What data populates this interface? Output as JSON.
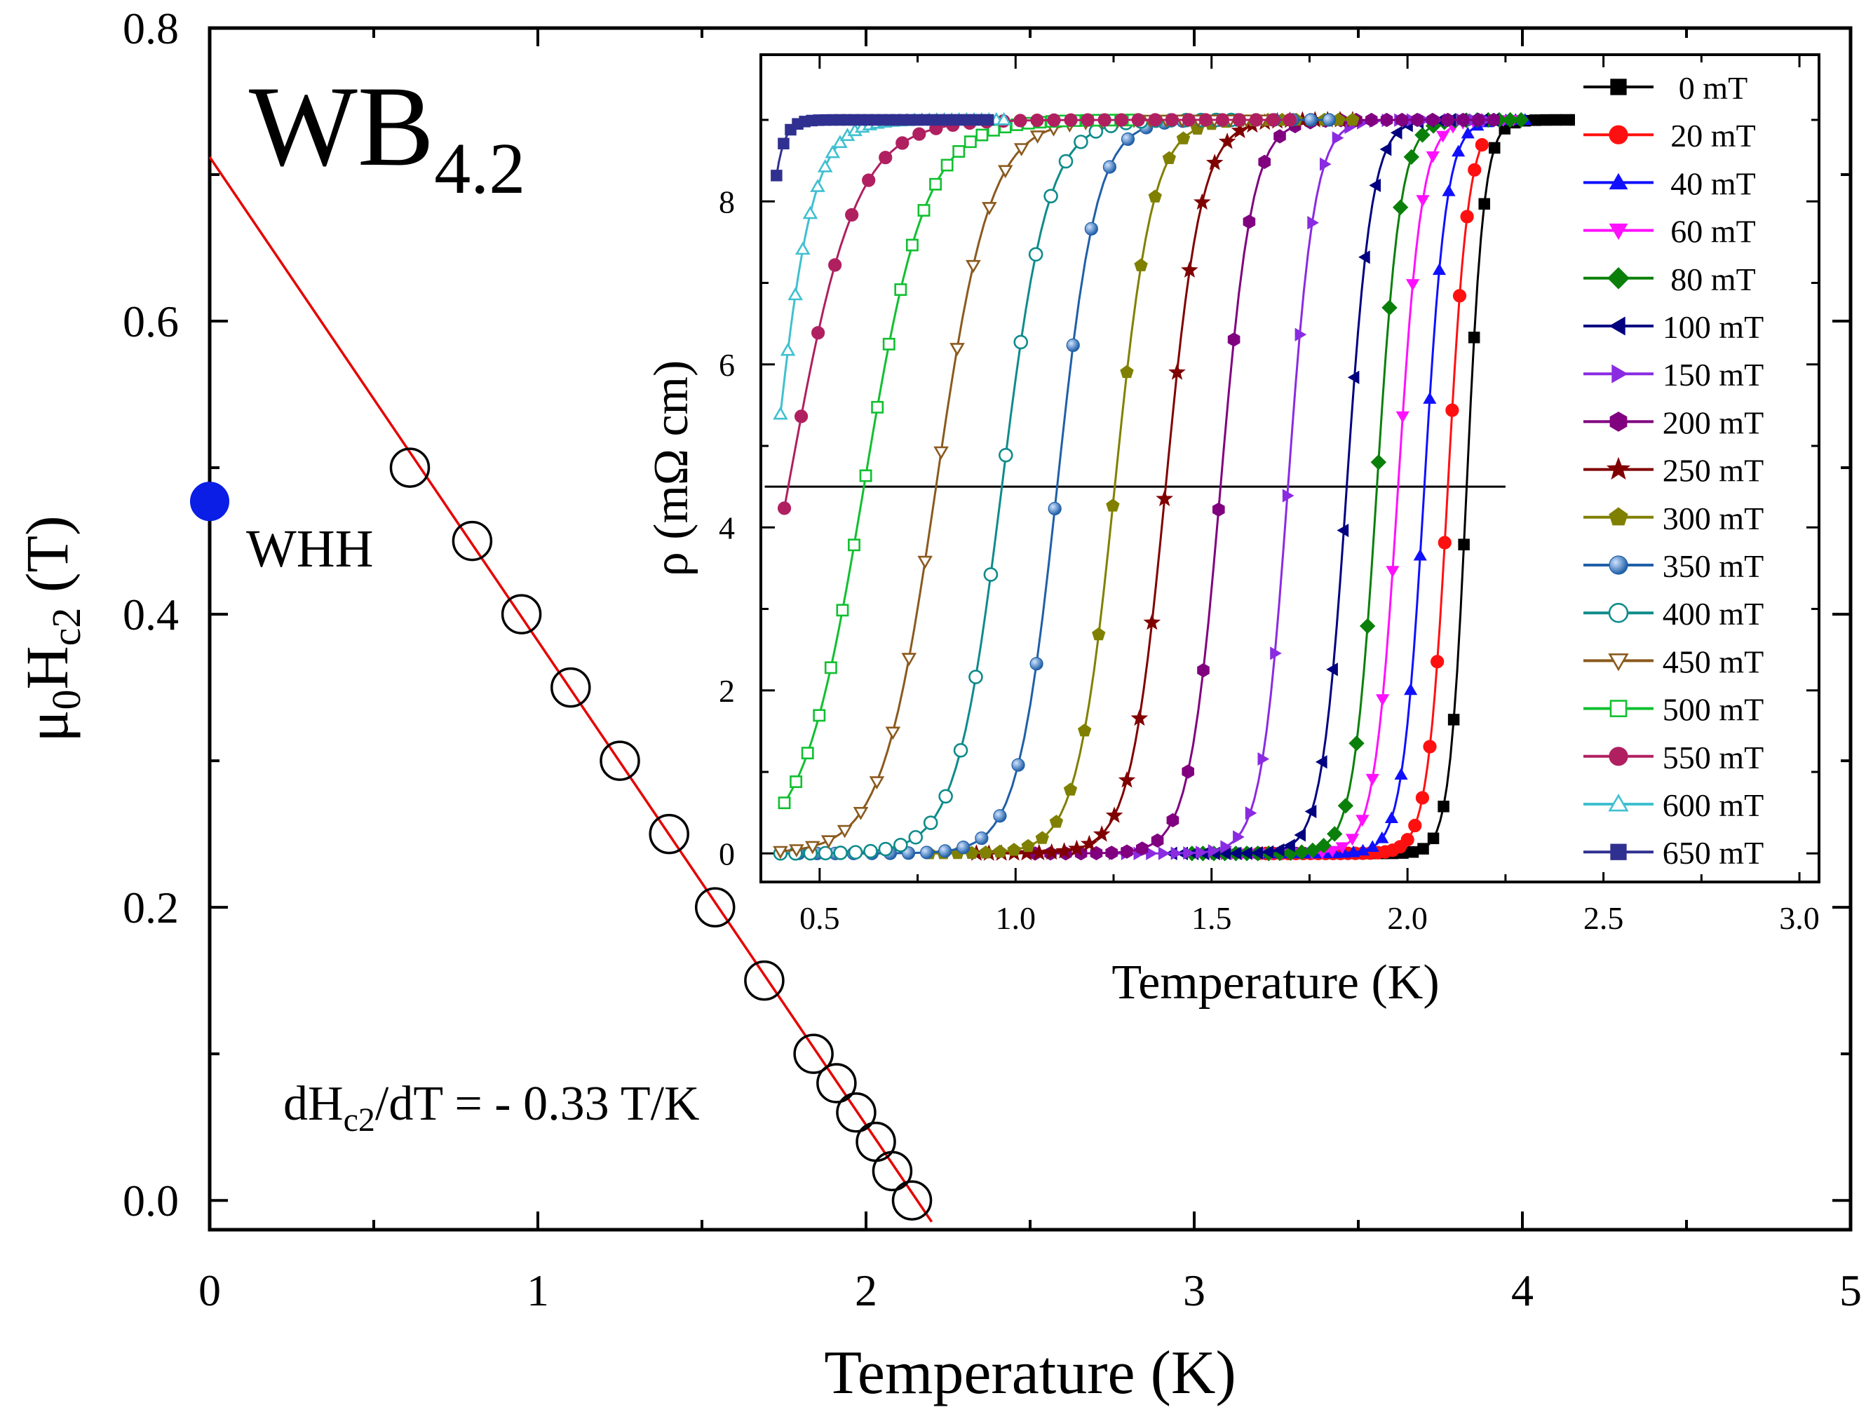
{
  "chart_data": [
    {
      "type": "scatter",
      "title": "WB4.2",
      "title_main": "WB",
      "title_sub": "4.2",
      "xlabel": "Temperature (K)",
      "ylabel_parts": [
        "μ",
        "0",
        "H",
        "c2",
        " (T)"
      ],
      "xlim": [
        0,
        5
      ],
      "ylim": [
        -0.02,
        0.8
      ],
      "xticks": [
        "0",
        "1",
        "2",
        "3",
        "4",
        "5"
      ],
      "yticks": [
        "0.0",
        "0.2",
        "0.4",
        "0.6",
        "0.8"
      ],
      "series": [
        {
          "name": "Hc2 data",
          "marker": "open-circle",
          "color": "#000000",
          "points": [
            [
              0.61,
              0.5
            ],
            [
              0.8,
              0.45
            ],
            [
              0.95,
              0.4
            ],
            [
              1.1,
              0.35
            ],
            [
              1.25,
              0.3
            ],
            [
              1.4,
              0.25
            ],
            [
              1.54,
              0.2
            ],
            [
              1.69,
              0.15
            ],
            [
              1.84,
              0.1
            ],
            [
              1.91,
              0.08
            ],
            [
              1.97,
              0.06
            ],
            [
              2.03,
              0.04
            ],
            [
              2.08,
              0.02
            ],
            [
              2.14,
              0.0
            ]
          ]
        },
        {
          "name": "WHH",
          "marker": "filled-circle",
          "color": "#0a1ee6",
          "points": [
            [
              0.0,
              0.477
            ]
          ]
        },
        {
          "name": "Linear fit",
          "marker": "line",
          "color": "#e60000",
          "points": [
            [
              0.0,
              0.712
            ],
            [
              2.2,
              -0.0146
            ]
          ]
        }
      ],
      "annotations": {
        "whh_label": "WHH",
        "slope_parts": [
          "dH",
          "c2",
          "/dT = - 0.33 T/K"
        ]
      }
    },
    {
      "type": "line",
      "title": "inset",
      "xlabel": "Temperature (K)",
      "ylabel": "ρ (mΩ cm)",
      "xlim": [
        0.35,
        3.05
      ],
      "ylim": [
        -0.35,
        9.8
      ],
      "xticks": [
        "0.5",
        "1.0",
        "1.5",
        "2.0",
        "2.5",
        "3.0"
      ],
      "yticks": [
        "0",
        "2",
        "4",
        "6",
        "8"
      ],
      "reference_line": {
        "y": 4.5,
        "x_range": [
          0.36,
          2.25
        ]
      },
      "legend_position": "right",
      "series": [
        {
          "name": "0 mT",
          "color": "#000000",
          "marker": "filled-square",
          "tc": 2.151,
          "w": 0.022,
          "xmin": 1.65,
          "xmax": 2.43
        },
        {
          "name": "20 mT",
          "color": "#ff1010",
          "marker": "filled-circle",
          "tc": 2.103,
          "w": 0.026,
          "xmin": 1.62,
          "xmax": 2.19
        },
        {
          "name": "40 mT",
          "color": "#1010ff",
          "marker": "filled-triangle-up",
          "tc": 2.043,
          "w": 0.028,
          "xmin": 1.57,
          "xmax": 2.3
        },
        {
          "name": "60 mT",
          "color": "#ff10ff",
          "marker": "filled-triangle-down",
          "tc": 1.976,
          "w": 0.03,
          "xmin": 1.5,
          "xmax": 2.27
        },
        {
          "name": "80 mT",
          "color": "#0a800a",
          "marker": "filled-diamond",
          "tc": 1.922,
          "w": 0.03,
          "xmin": 1.45,
          "xmax": 2.29
        },
        {
          "name": "100 mT",
          "color": "#000080",
          "marker": "filled-triangle-left",
          "tc": 1.845,
          "w": 0.032,
          "xmin": 1.4,
          "xmax": 2.22
        },
        {
          "name": "150 mT",
          "color": "#8a2be2",
          "marker": "filled-triangle-right",
          "tc": 1.695,
          "w": 0.034,
          "xmin": 1.25,
          "xmax": 2.2
        },
        {
          "name": "200 mT",
          "color": "#800080",
          "marker": "filled-hexagon",
          "tc": 1.523,
          "w": 0.04,
          "xmin": 1.05,
          "xmax": 2.22
        },
        {
          "name": "250 mT",
          "color": "#800000",
          "marker": "filled-star",
          "tc": 1.383,
          "w": 0.045,
          "xmin": 0.9,
          "xmax": 1.86
        },
        {
          "name": "300 mT",
          "color": "#808000",
          "marker": "filled-pentagon",
          "tc": 1.253,
          "w": 0.048,
          "xmin": 0.78,
          "xmax": 1.86
        },
        {
          "name": "350 mT",
          "color": "#1f5fa8",
          "marker": "filled-sphere",
          "tc": 1.106,
          "w": 0.05,
          "xmin": 0.4,
          "xmax": 1.8
        },
        {
          "name": "400 mT",
          "color": "#0f8b8b",
          "marker": "open-circle",
          "tc": 0.965,
          "w": 0.058,
          "xmin": 0.4,
          "xmax": 1.55
        },
        {
          "name": "450 mT",
          "color": "#8b5a1e",
          "marker": "open-triangle-down",
          "tc": 0.797,
          "w": 0.068,
          "xmin": 0.4,
          "xmax": 1.63
        },
        {
          "name": "500 mT",
          "color": "#10c030",
          "marker": "open-square",
          "tc": 0.613,
          "w": 0.078,
          "xmin": 0.41,
          "xmax": 1.3
        },
        {
          "name": "550 mT",
          "color": "#b02060",
          "marker": "filled-circle",
          "tc": 0.42,
          "w": 0.085,
          "xmin": 0.41,
          "xmax": 1.7
        },
        {
          "name": "600 mT",
          "color": "#40c0d0",
          "marker": "open-triangle-up",
          "tc": 0.38,
          "w": 0.05,
          "xmin": 0.4,
          "xmax": 0.97
        },
        {
          "name": "650 mT",
          "color": "#303090",
          "marker": "filled-square",
          "tc": 0.34,
          "w": 0.02,
          "xmin": 0.39,
          "xmax": 0.93
        }
      ]
    }
  ]
}
